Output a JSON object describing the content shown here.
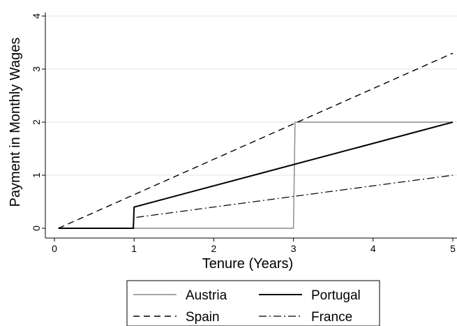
{
  "chart_data": {
    "type": "line",
    "xlabel": "Tenure (Years)",
    "ylabel": "Payment in Monthly Wages",
    "xlim": [
      0,
      5
    ],
    "ylim": [
      0,
      4
    ],
    "x_ticks": [
      0,
      1,
      2,
      3,
      4,
      5
    ],
    "y_ticks": [
      0,
      1,
      2,
      3,
      4
    ],
    "grid": "horizontal",
    "legend_position": "bottom",
    "series": [
      {
        "name": "Austria",
        "color": "#888888",
        "style": "solid",
        "points": [
          [
            0.05,
            0
          ],
          [
            3.0,
            0
          ],
          [
            3.02,
            2
          ],
          [
            5.0,
            2
          ]
        ]
      },
      {
        "name": "Portugal",
        "color": "#000000",
        "style": "solid",
        "points": [
          [
            0.05,
            0
          ],
          [
            0.99,
            0
          ],
          [
            1.0,
            0.4
          ],
          [
            5.0,
            2.0
          ]
        ]
      },
      {
        "name": "Spain",
        "color": "#000000",
        "style": "dash",
        "points": [
          [
            0.05,
            0
          ],
          [
            5.0,
            3.3
          ]
        ]
      },
      {
        "name": "France",
        "color": "#000000",
        "style": "dashdot",
        "points": [
          [
            0.05,
            0
          ],
          [
            0.99,
            0
          ],
          [
            1.0,
            0.2
          ],
          [
            5.0,
            1.0
          ]
        ]
      }
    ]
  }
}
